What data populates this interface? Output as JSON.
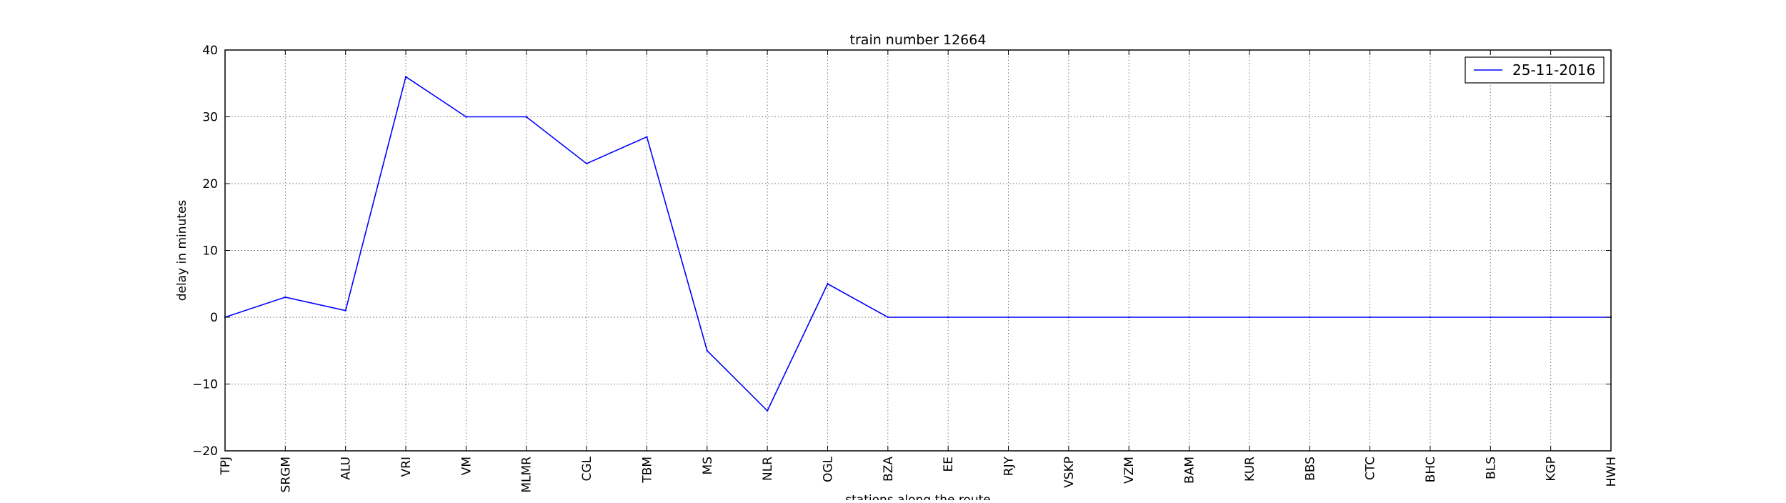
{
  "chart_data": {
    "type": "line",
    "title": "train number 12664",
    "xlabel": "stations along the route",
    "ylabel": "delay in minutes",
    "ylim": [
      -20,
      40
    ],
    "yticks": [
      -20,
      -10,
      0,
      10,
      20,
      30,
      40
    ],
    "ytick_labels": [
      "−20",
      "−10",
      "0",
      "10",
      "20",
      "30",
      "40"
    ],
    "grid": true,
    "legend_position": "top-right",
    "categories": [
      "TPJ",
      "SRGM",
      "ALU",
      "VRI",
      "VM",
      "MLMR",
      "CGL",
      "TBM",
      "MS",
      "NLR",
      "OGL",
      "BZA",
      "EE",
      "RJY",
      "VSKP",
      "VZM",
      "BAM",
      "KUR",
      "BBS",
      "CTC",
      "BHC",
      "BLS",
      "KGP",
      "HWH"
    ],
    "series": [
      {
        "name": "25-11-2016",
        "color": "#0000ff",
        "values": [
          0,
          3,
          1,
          36,
          30,
          30,
          23,
          27,
          -5,
          -14,
          5,
          0,
          0,
          0,
          0,
          0,
          0,
          0,
          0,
          0,
          0,
          0,
          0,
          0
        ]
      }
    ]
  }
}
